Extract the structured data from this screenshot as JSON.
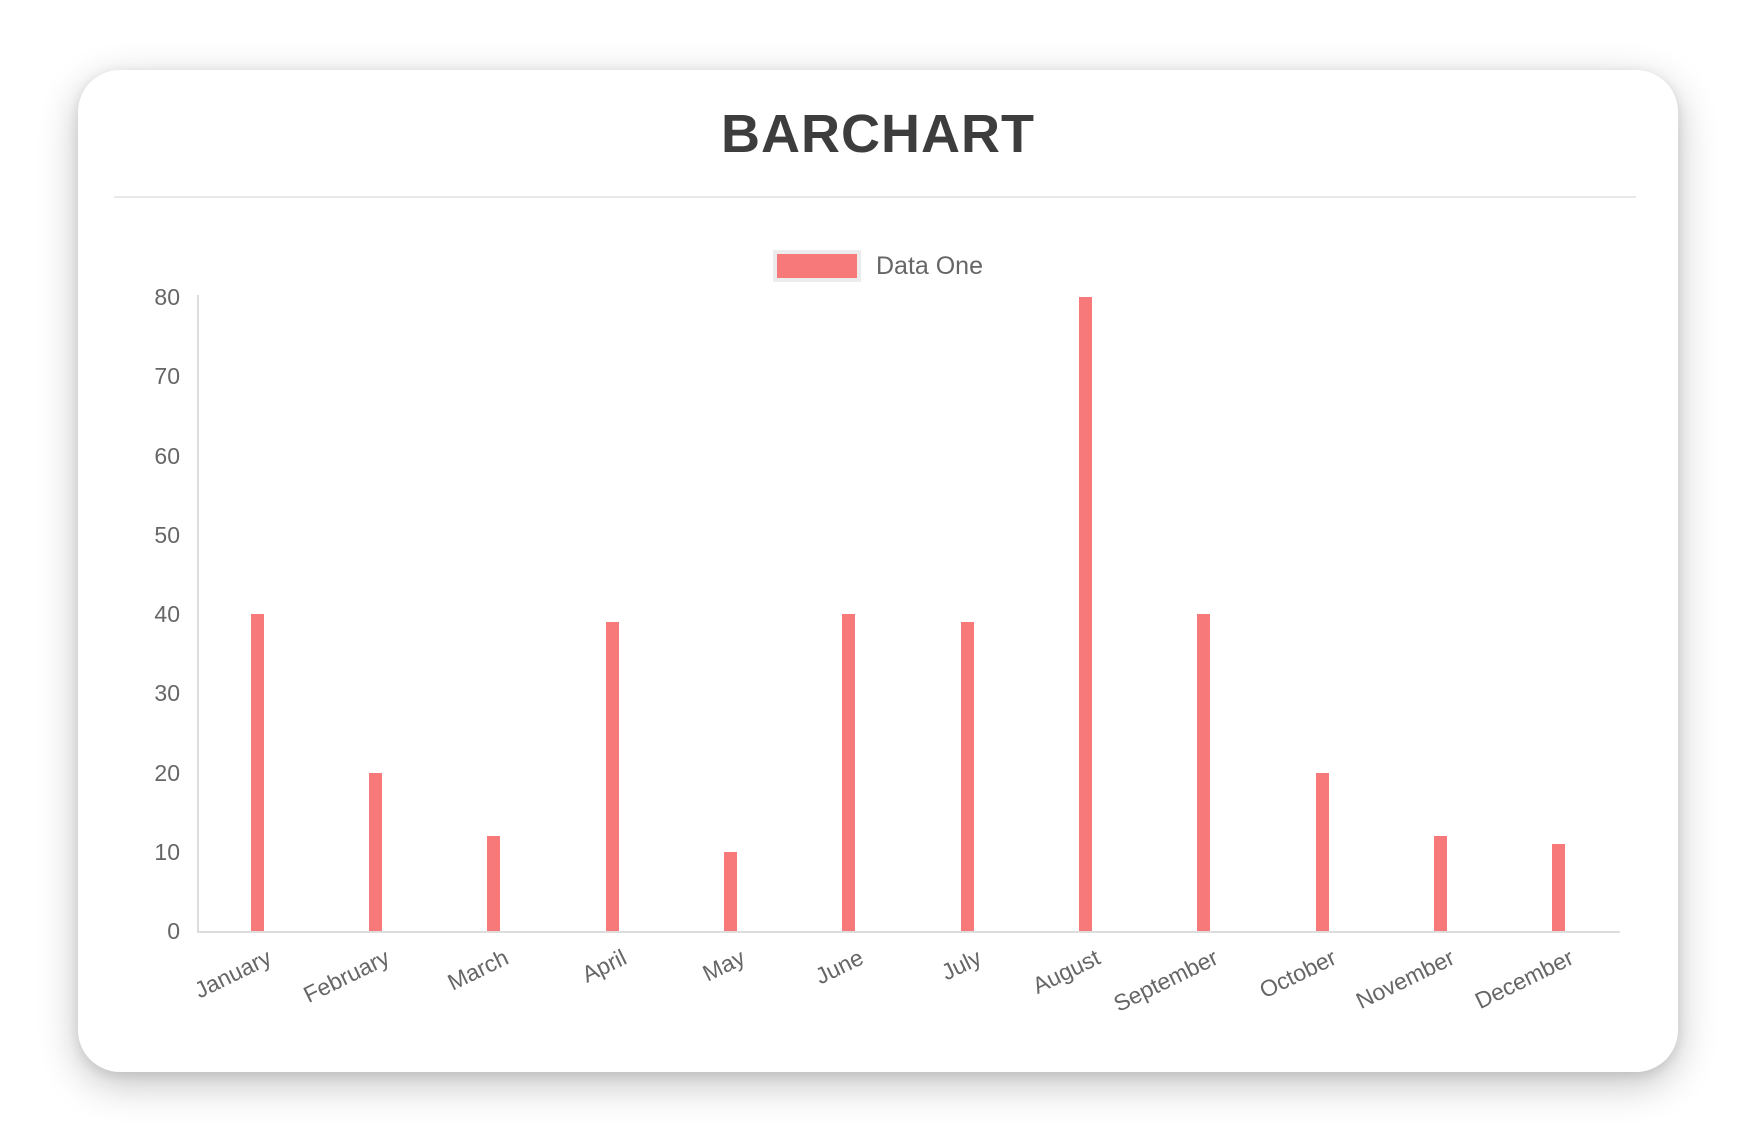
{
  "chart_data": {
    "type": "bar",
    "title": "BARCHART",
    "categories": [
      "January",
      "February",
      "March",
      "April",
      "May",
      "June",
      "July",
      "August",
      "September",
      "October",
      "November",
      "December"
    ],
    "series": [
      {
        "name": "Data One",
        "color": "#f87979",
        "values": [
          40,
          20,
          12,
          39,
          10,
          40,
          39,
          80,
          40,
          20,
          12,
          11
        ]
      }
    ],
    "xlabel": "",
    "ylabel": "",
    "ylim": [
      0,
      80
    ],
    "ytick_step": 10,
    "grid": false,
    "legend_position": "top-center"
  },
  "colors": {
    "bar": "#f87979",
    "title_text": "#3d3d3d",
    "axis_text": "#666666",
    "axis_line": "#dddddd",
    "divider": "#e8e8e8",
    "legend_swatch_border": "#ececec",
    "card_background": "#ffffff",
    "page_background": "#ffffff"
  }
}
